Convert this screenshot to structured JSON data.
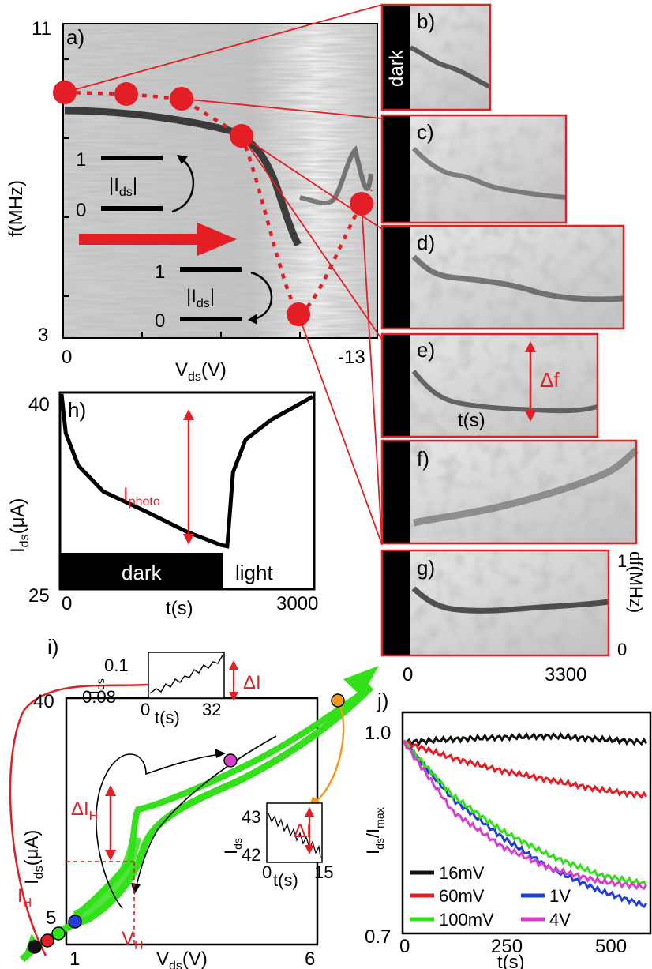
{
  "colors": {
    "red": "#e31e24",
    "green": "#33e01a",
    "dark_line": "#111111",
    "orange": "#f29a1f",
    "magenta": "#d63fc8",
    "blue": "#1f3fd6"
  },
  "panel_a": {
    "label": "a)",
    "ylabel": "f(MHz)",
    "xlabel": "V",
    "xlabel_sub": "ds",
    "xlabel_unit": "(V)",
    "y_top": "11",
    "y_bottom": "3",
    "x_left": "0",
    "x_right": "-13",
    "level_1": "1",
    "level_0": "0",
    "current_label": "I",
    "current_sub": "ds",
    "level_1b": "1",
    "level_0b": "0",
    "current_label_b": "I",
    "current_sub_b": "ds"
  },
  "panel_b": {
    "label": "b)",
    "dark_text": "dark"
  },
  "panel_c": {
    "label": "c)"
  },
  "panel_d": {
    "label": "d)"
  },
  "panel_e": {
    "label": "e)",
    "delta": "Δf",
    "time": "t(s)"
  },
  "panel_f": {
    "label": "f)"
  },
  "panel_g": {
    "label": "g)",
    "x_left": "0",
    "x_right": "3300",
    "df_label": "df(MHz)",
    "df_top": "1",
    "df_bottom": "0"
  },
  "panel_h": {
    "label": "h)",
    "ylabel": "I",
    "ylabel_sub": "ds",
    "ylabel_unit": "(μA)",
    "y_top": "40",
    "y_bottom": "25",
    "x_left": "0",
    "x_right": "3000",
    "xlabel": "t(s)",
    "photo": "I",
    "photo_sub": "photo",
    "dark": "dark",
    "light": "light"
  },
  "panel_i": {
    "label": "i)",
    "ylabel": "I",
    "ylabel_sub": "ds",
    "ylabel_unit": "(μA)",
    "y_top": "40",
    "y_mark": "5",
    "x_left": "1",
    "x_right": "6",
    "xlabel": "V",
    "xlabel_sub": "ds",
    "xlabel_unit": "(V)",
    "ih": "I",
    "ih_sub": "H",
    "vh": "V",
    "vh_sub": "H",
    "dih": "ΔI",
    "dih_sub": "H",
    "inset1": {
      "ylabel": "I",
      "ylabel_sub": "ds",
      "y_top": "0.1",
      "y_bottom": "0.08",
      "x_left": "0",
      "x_right": "32",
      "xlabel": "t(s)",
      "delta": "ΔI"
    },
    "inset2": {
      "ylabel": "I",
      "ylabel_sub": "ds",
      "y_top": "43",
      "y_bottom": "42",
      "x_left": "0",
      "x_right": "15",
      "xlabel": "t(s)",
      "delta": "ΔI"
    }
  },
  "panel_j": {
    "label": "j)",
    "ylabel": "I",
    "ylabel_sub1": "ds",
    "ylabel_mid": "/I",
    "ylabel_sub2": "max",
    "y_top": "1.0",
    "y_bottom": "0.7",
    "x_0": "0",
    "x_250": "250",
    "x_500": "500",
    "xlabel": "t(s)",
    "legend": [
      "16mV",
      "60mV",
      "1V",
      "100mV",
      "4V"
    ]
  },
  "chart_data": [
    {
      "type": "line",
      "panel": "a",
      "title": "",
      "xlabel": "Vds(V)",
      "ylabel": "f(MHz)",
      "xlim": [
        0,
        -13
      ],
      "ylim": [
        3,
        11
      ],
      "series": [
        {
          "values_x": [
            0,
            -2.5,
            -5.5,
            -8.2,
            -10.3,
            -12.5
          ],
          "values_y": [
            10.2,
            10.1,
            9.9,
            9.3,
            3.6,
            7.6
          ]
        }
      ]
    },
    {
      "type": "line",
      "panel": "h",
      "xlabel": "t(s)",
      "ylabel": "Ids(μA)",
      "xlim": [
        0,
        3000
      ],
      "ylim": [
        25,
        40
      ],
      "series": [
        {
          "x": [
            0,
            50,
            200,
            500,
            1000,
            1500,
            1900,
            1980,
            2050,
            2200,
            2500,
            3000
          ],
          "y": [
            40,
            37,
            34.5,
            32.5,
            31,
            29.4,
            28.4,
            28.3,
            34,
            36.5,
            38,
            39.8
          ]
        }
      ]
    },
    {
      "type": "line",
      "panel": "j",
      "xlabel": "t(s)",
      "ylabel": "Ids/Imax",
      "xlim": [
        0,
        500
      ],
      "ylim": [
        0.7,
        1.0
      ],
      "series": [
        {
          "name": "16mV",
          "x": [
            0,
            100,
            200,
            300,
            400,
            500
          ],
          "y": [
            1.0,
            1.005,
            1.008,
            1.01,
            1.005,
            1.0
          ]
        },
        {
          "name": "60mV",
          "x": [
            0,
            100,
            200,
            300,
            400,
            500
          ],
          "y": [
            1.0,
            0.975,
            0.955,
            0.94,
            0.925,
            0.915
          ]
        },
        {
          "name": "1V",
          "x": [
            0,
            100,
            200,
            300,
            400,
            500
          ],
          "y": [
            1.0,
            0.91,
            0.85,
            0.8,
            0.765,
            0.74
          ]
        },
        {
          "name": "100mV",
          "x": [
            0,
            100,
            200,
            300,
            400,
            500
          ],
          "y": [
            1.0,
            0.915,
            0.86,
            0.82,
            0.79,
            0.775
          ]
        },
        {
          "name": "4V",
          "x": [
            0,
            100,
            200,
            300,
            400,
            500
          ],
          "y": [
            1.0,
            0.89,
            0.835,
            0.8,
            0.78,
            0.77
          ]
        }
      ]
    }
  ]
}
